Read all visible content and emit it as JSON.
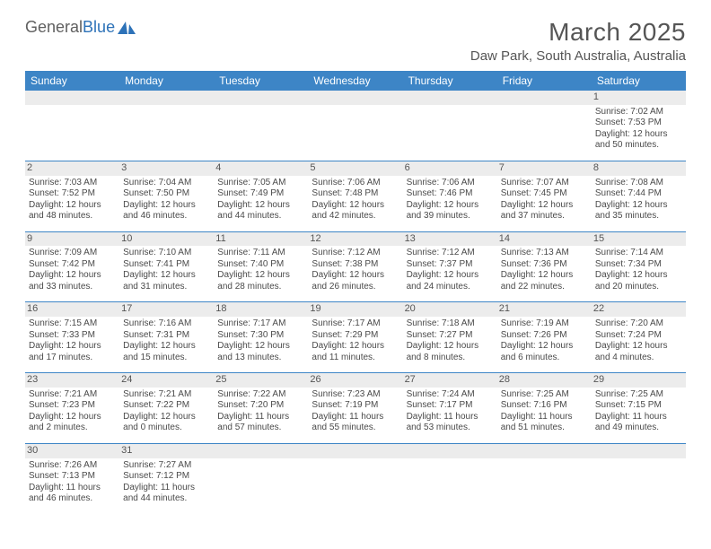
{
  "branding": {
    "name1": "General",
    "name2": "Blue"
  },
  "title": "March 2025",
  "location": "Daw Park, South Australia, Australia",
  "daysOfWeek": [
    "Sunday",
    "Monday",
    "Tuesday",
    "Wednesday",
    "Thursday",
    "Friday",
    "Saturday"
  ],
  "colors": {
    "header_bg": "#3d85c6",
    "header_text": "#ffffff",
    "daynum_bg": "#ececec",
    "rule": "#3d85c6",
    "text": "#4a4a4a"
  },
  "weeks": [
    [
      null,
      null,
      null,
      null,
      null,
      null,
      {
        "n": "1",
        "sr": "Sunrise: 7:02 AM",
        "ss": "Sunset: 7:53 PM",
        "d1": "Daylight: 12 hours",
        "d2": "and 50 minutes."
      }
    ],
    [
      {
        "n": "2",
        "sr": "Sunrise: 7:03 AM",
        "ss": "Sunset: 7:52 PM",
        "d1": "Daylight: 12 hours",
        "d2": "and 48 minutes."
      },
      {
        "n": "3",
        "sr": "Sunrise: 7:04 AM",
        "ss": "Sunset: 7:50 PM",
        "d1": "Daylight: 12 hours",
        "d2": "and 46 minutes."
      },
      {
        "n": "4",
        "sr": "Sunrise: 7:05 AM",
        "ss": "Sunset: 7:49 PM",
        "d1": "Daylight: 12 hours",
        "d2": "and 44 minutes."
      },
      {
        "n": "5",
        "sr": "Sunrise: 7:06 AM",
        "ss": "Sunset: 7:48 PM",
        "d1": "Daylight: 12 hours",
        "d2": "and 42 minutes."
      },
      {
        "n": "6",
        "sr": "Sunrise: 7:06 AM",
        "ss": "Sunset: 7:46 PM",
        "d1": "Daylight: 12 hours",
        "d2": "and 39 minutes."
      },
      {
        "n": "7",
        "sr": "Sunrise: 7:07 AM",
        "ss": "Sunset: 7:45 PM",
        "d1": "Daylight: 12 hours",
        "d2": "and 37 minutes."
      },
      {
        "n": "8",
        "sr": "Sunrise: 7:08 AM",
        "ss": "Sunset: 7:44 PM",
        "d1": "Daylight: 12 hours",
        "d2": "and 35 minutes."
      }
    ],
    [
      {
        "n": "9",
        "sr": "Sunrise: 7:09 AM",
        "ss": "Sunset: 7:42 PM",
        "d1": "Daylight: 12 hours",
        "d2": "and 33 minutes."
      },
      {
        "n": "10",
        "sr": "Sunrise: 7:10 AM",
        "ss": "Sunset: 7:41 PM",
        "d1": "Daylight: 12 hours",
        "d2": "and 31 minutes."
      },
      {
        "n": "11",
        "sr": "Sunrise: 7:11 AM",
        "ss": "Sunset: 7:40 PM",
        "d1": "Daylight: 12 hours",
        "d2": "and 28 minutes."
      },
      {
        "n": "12",
        "sr": "Sunrise: 7:12 AM",
        "ss": "Sunset: 7:38 PM",
        "d1": "Daylight: 12 hours",
        "d2": "and 26 minutes."
      },
      {
        "n": "13",
        "sr": "Sunrise: 7:12 AM",
        "ss": "Sunset: 7:37 PM",
        "d1": "Daylight: 12 hours",
        "d2": "and 24 minutes."
      },
      {
        "n": "14",
        "sr": "Sunrise: 7:13 AM",
        "ss": "Sunset: 7:36 PM",
        "d1": "Daylight: 12 hours",
        "d2": "and 22 minutes."
      },
      {
        "n": "15",
        "sr": "Sunrise: 7:14 AM",
        "ss": "Sunset: 7:34 PM",
        "d1": "Daylight: 12 hours",
        "d2": "and 20 minutes."
      }
    ],
    [
      {
        "n": "16",
        "sr": "Sunrise: 7:15 AM",
        "ss": "Sunset: 7:33 PM",
        "d1": "Daylight: 12 hours",
        "d2": "and 17 minutes."
      },
      {
        "n": "17",
        "sr": "Sunrise: 7:16 AM",
        "ss": "Sunset: 7:31 PM",
        "d1": "Daylight: 12 hours",
        "d2": "and 15 minutes."
      },
      {
        "n": "18",
        "sr": "Sunrise: 7:17 AM",
        "ss": "Sunset: 7:30 PM",
        "d1": "Daylight: 12 hours",
        "d2": "and 13 minutes."
      },
      {
        "n": "19",
        "sr": "Sunrise: 7:17 AM",
        "ss": "Sunset: 7:29 PM",
        "d1": "Daylight: 12 hours",
        "d2": "and 11 minutes."
      },
      {
        "n": "20",
        "sr": "Sunrise: 7:18 AM",
        "ss": "Sunset: 7:27 PM",
        "d1": "Daylight: 12 hours",
        "d2": "and 8 minutes."
      },
      {
        "n": "21",
        "sr": "Sunrise: 7:19 AM",
        "ss": "Sunset: 7:26 PM",
        "d1": "Daylight: 12 hours",
        "d2": "and 6 minutes."
      },
      {
        "n": "22",
        "sr": "Sunrise: 7:20 AM",
        "ss": "Sunset: 7:24 PM",
        "d1": "Daylight: 12 hours",
        "d2": "and 4 minutes."
      }
    ],
    [
      {
        "n": "23",
        "sr": "Sunrise: 7:21 AM",
        "ss": "Sunset: 7:23 PM",
        "d1": "Daylight: 12 hours",
        "d2": "and 2 minutes."
      },
      {
        "n": "24",
        "sr": "Sunrise: 7:21 AM",
        "ss": "Sunset: 7:22 PM",
        "d1": "Daylight: 12 hours",
        "d2": "and 0 minutes."
      },
      {
        "n": "25",
        "sr": "Sunrise: 7:22 AM",
        "ss": "Sunset: 7:20 PM",
        "d1": "Daylight: 11 hours",
        "d2": "and 57 minutes."
      },
      {
        "n": "26",
        "sr": "Sunrise: 7:23 AM",
        "ss": "Sunset: 7:19 PM",
        "d1": "Daylight: 11 hours",
        "d2": "and 55 minutes."
      },
      {
        "n": "27",
        "sr": "Sunrise: 7:24 AM",
        "ss": "Sunset: 7:17 PM",
        "d1": "Daylight: 11 hours",
        "d2": "and 53 minutes."
      },
      {
        "n": "28",
        "sr": "Sunrise: 7:25 AM",
        "ss": "Sunset: 7:16 PM",
        "d1": "Daylight: 11 hours",
        "d2": "and 51 minutes."
      },
      {
        "n": "29",
        "sr": "Sunrise: 7:25 AM",
        "ss": "Sunset: 7:15 PM",
        "d1": "Daylight: 11 hours",
        "d2": "and 49 minutes."
      }
    ],
    [
      {
        "n": "30",
        "sr": "Sunrise: 7:26 AM",
        "ss": "Sunset: 7:13 PM",
        "d1": "Daylight: 11 hours",
        "d2": "and 46 minutes."
      },
      {
        "n": "31",
        "sr": "Sunrise: 7:27 AM",
        "ss": "Sunset: 7:12 PM",
        "d1": "Daylight: 11 hours",
        "d2": "and 44 minutes."
      },
      null,
      null,
      null,
      null,
      null
    ]
  ]
}
